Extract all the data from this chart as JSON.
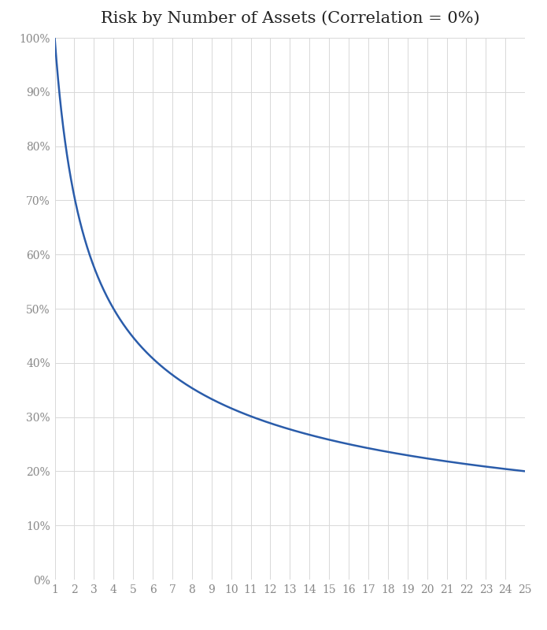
{
  "title": "Risk by Number of Assets (Correlation = 0%)",
  "x_ticks": [
    1,
    2,
    3,
    4,
    5,
    6,
    7,
    8,
    9,
    10,
    11,
    12,
    13,
    14,
    15,
    16,
    17,
    18,
    19,
    20,
    21,
    22,
    23,
    24,
    25
  ],
  "y_ticks": [
    0,
    10,
    20,
    30,
    40,
    50,
    60,
    70,
    80,
    90,
    100
  ],
  "xlim": [
    1,
    25
  ],
  "ylim": [
    0,
    100
  ],
  "line_color": "#2a5caa",
  "line_width": 1.8,
  "background_color": "#ffffff",
  "grid_color": "#d8d8d8",
  "grid_linewidth": 0.7,
  "title_fontsize": 15,
  "tick_fontsize": 10,
  "tick_color": "#888888"
}
